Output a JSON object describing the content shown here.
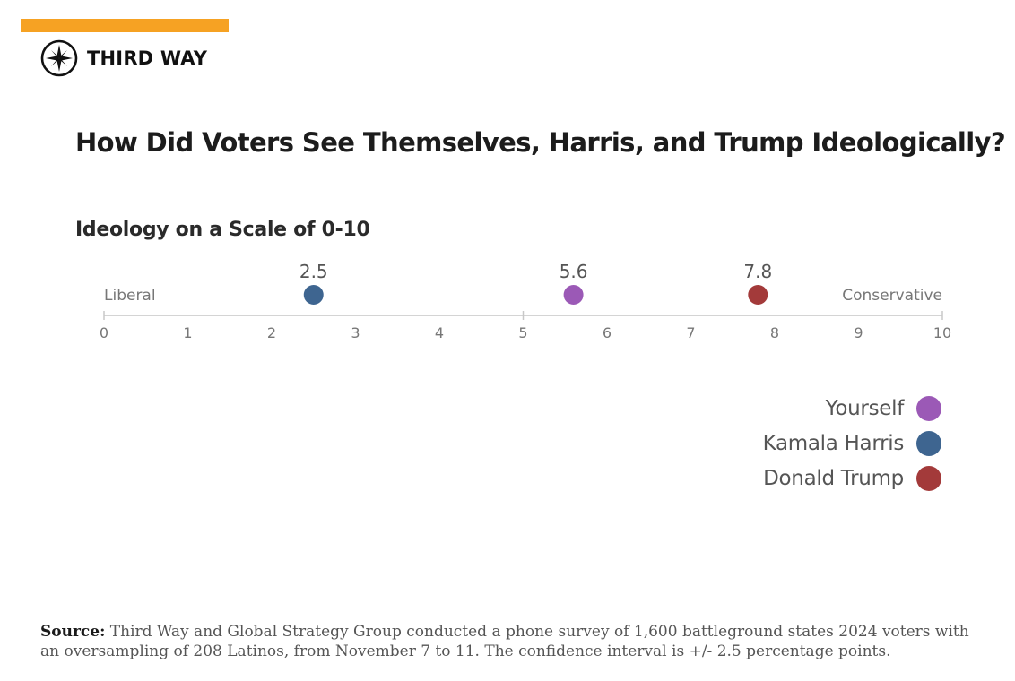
{
  "brand": {
    "name": "THIRD WAY",
    "accent_color": "#f6a223",
    "logo_icon": "compass-star-icon"
  },
  "title": "How Did Voters See Themselves, Harris, and Trump Ideologically?",
  "subtitle": "Ideology on a Scale of 0-10",
  "chart_data": {
    "type": "scatter",
    "xlim": [
      0,
      10
    ],
    "ticks": [
      "0",
      "1",
      "2",
      "3",
      "4",
      "5",
      "6",
      "7",
      "8",
      "9",
      "10"
    ],
    "left_label": "Liberal",
    "right_label": "Conservative",
    "points": [
      {
        "name": "Kamala Harris",
        "value": 2.5,
        "label": "2.5",
        "color": "#3e6590"
      },
      {
        "name": "Yourself",
        "value": 5.6,
        "label": "5.6",
        "color": "#9b59b6"
      },
      {
        "name": "Donald Trump",
        "value": 7.8,
        "label": "7.8",
        "color": "#a33a3a"
      }
    ],
    "legend_placement": "bottom-right"
  },
  "legend": [
    {
      "label": "Yourself",
      "color": "#9b59b6"
    },
    {
      "label": "Kamala Harris",
      "color": "#3e6590"
    },
    {
      "label": "Donald Trump",
      "color": "#a33a3a"
    }
  ],
  "source": {
    "label": "Source:",
    "text": "Third Way and Global Strategy Group conducted a phone survey of 1,600 battleground states 2024 voters with an oversampling of 208 Latinos, from November 7 to 11. The confidence interval is +/- 2.5 percentage points."
  }
}
